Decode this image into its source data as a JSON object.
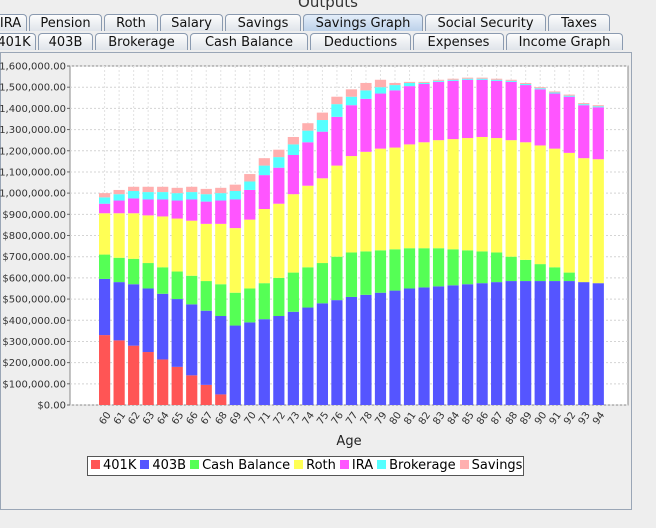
{
  "window": {
    "title": "Outputs"
  },
  "tabs_row1": [
    {
      "label": "IRA",
      "selected": false
    },
    {
      "label": "Pension",
      "selected": false
    },
    {
      "label": "Roth",
      "selected": false
    },
    {
      "label": "Salary",
      "selected": false
    },
    {
      "label": "Savings",
      "selected": false
    },
    {
      "label": "Savings Graph",
      "selected": true
    },
    {
      "label": "Social Security",
      "selected": false
    },
    {
      "label": "Taxes",
      "selected": false
    }
  ],
  "tabs_row2": [
    {
      "label": "401K"
    },
    {
      "label": "403B"
    },
    {
      "label": "Brokerage"
    },
    {
      "label": "Cash Balance"
    },
    {
      "label": "Deductions"
    },
    {
      "label": "Expenses"
    },
    {
      "label": "Income Graph"
    }
  ],
  "chart_data": {
    "type": "bar",
    "stacked": true,
    "xlabel": "Age",
    "ylabel": "",
    "ylim": [
      0,
      1600000
    ],
    "yticks": [
      "$0.00",
      "$100,000.00",
      "$200,000.00",
      "$300,000.00",
      "$400,000.00",
      "$500,000.00",
      "$600,000.00",
      "$700,000.00",
      "$800,000.00",
      "$900,000.00",
      "$1,000,000.00",
      "$1,100,000.00",
      "$1,200,000.00",
      "$1,300,000.00",
      "$1,400,000.00",
      "$1,500,000.00",
      "$1,600,000.00"
    ],
    "grid": true,
    "legend_position": "bottom",
    "categories": [
      "60",
      "61",
      "62",
      "63",
      "64",
      "65",
      "66",
      "67",
      "68",
      "69",
      "70",
      "71",
      "72",
      "73",
      "74",
      "75",
      "76",
      "77",
      "78",
      "79",
      "80",
      "81",
      "82",
      "83",
      "84",
      "85",
      "86",
      "87",
      "88",
      "89",
      "90",
      "91",
      "92",
      "93",
      "94"
    ],
    "series": [
      {
        "name": "401K",
        "color": "#ff5555",
        "values": [
          330000,
          305000,
          280000,
          250000,
          215000,
          180000,
          140000,
          95000,
          50000,
          0,
          0,
          0,
          0,
          0,
          0,
          0,
          0,
          0,
          0,
          0,
          0,
          0,
          0,
          0,
          0,
          0,
          0,
          0,
          0,
          0,
          0,
          0,
          0,
          0,
          0
        ]
      },
      {
        "name": "403B",
        "color": "#5555ff",
        "values": [
          265000,
          275000,
          290000,
          300000,
          310000,
          320000,
          335000,
          350000,
          370000,
          375000,
          390000,
          405000,
          420000,
          440000,
          460000,
          480000,
          495000,
          510000,
          520000,
          530000,
          540000,
          550000,
          555000,
          560000,
          565000,
          570000,
          575000,
          580000,
          585000,
          585000,
          585000,
          585000,
          585000,
          580000,
          575000
        ]
      },
      {
        "name": "Cash Balance",
        "color": "#55ff55",
        "values": [
          115000,
          115000,
          120000,
          120000,
          125000,
          130000,
          135000,
          140000,
          150000,
          155000,
          160000,
          170000,
          180000,
          185000,
          190000,
          190000,
          205000,
          210000,
          205000,
          200000,
          195000,
          190000,
          185000,
          180000,
          170000,
          160000,
          150000,
          140000,
          115000,
          100000,
          80000,
          65000,
          40000,
          0,
          0
        ]
      },
      {
        "name": "Roth",
        "color": "#ffff55",
        "values": [
          195000,
          210000,
          215000,
          225000,
          240000,
          250000,
          260000,
          270000,
          285000,
          305000,
          325000,
          350000,
          350000,
          370000,
          385000,
          400000,
          430000,
          455000,
          470000,
          480000,
          480000,
          490000,
          500000,
          510000,
          520000,
          530000,
          540000,
          540000,
          550000,
          555000,
          560000,
          560000,
          565000,
          585000,
          585000
        ]
      },
      {
        "name": "IRA",
        "color": "#ff55ff",
        "values": [
          45000,
          60000,
          70000,
          75000,
          80000,
          85000,
          100000,
          105000,
          110000,
          135000,
          140000,
          160000,
          170000,
          185000,
          205000,
          220000,
          230000,
          240000,
          250000,
          260000,
          270000,
          275000,
          275000,
          275000,
          275000,
          275000,
          270000,
          270000,
          275000,
          270000,
          265000,
          260000,
          265000,
          250000,
          245000
        ]
      },
      {
        "name": "Brokerage",
        "color": "#55ffff",
        "values": [
          30000,
          30000,
          35000,
          35000,
          35000,
          35000,
          35000,
          35000,
          35000,
          40000,
          40000,
          45000,
          50000,
          50000,
          55000,
          55000,
          60000,
          40000,
          40000,
          30000,
          25000,
          15000,
          5000,
          5000,
          5000,
          5000,
          5000,
          5000,
          5000,
          5000,
          5000,
          5000,
          5000,
          5000,
          5000
        ]
      },
      {
        "name": "Savings",
        "color": "#ffafaf",
        "values": [
          20000,
          20000,
          20000,
          25000,
          25000,
          25000,
          25000,
          25000,
          25000,
          30000,
          35000,
          35000,
          35000,
          35000,
          35000,
          35000,
          35000,
          35000,
          35000,
          35000,
          10000,
          5000,
          5000,
          5000,
          5000,
          5000,
          5000,
          5000,
          5000,
          5000,
          5000,
          5000,
          5000,
          5000,
          5000
        ]
      }
    ]
  }
}
